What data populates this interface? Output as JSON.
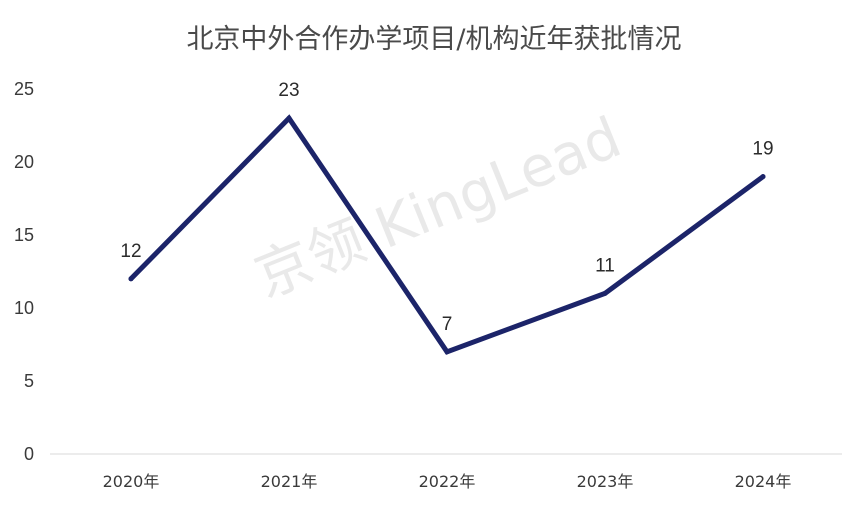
{
  "watermark": "京领 KingLead",
  "chart_data": {
    "type": "line",
    "title": "北京中外合作办学项目/机构近年获批情况",
    "categories": [
      "2020年",
      "2021年",
      "2022年",
      "2023年",
      "2024年"
    ],
    "series": [
      {
        "values": [
          12,
          23,
          7,
          11,
          19
        ],
        "color": "#1c2469"
      }
    ],
    "y_ticks": [
      0,
      5,
      10,
      15,
      20,
      25
    ],
    "ylim": [
      0,
      25
    ],
    "grid": false,
    "data_labels": true,
    "xlabel": "",
    "ylabel": ""
  }
}
